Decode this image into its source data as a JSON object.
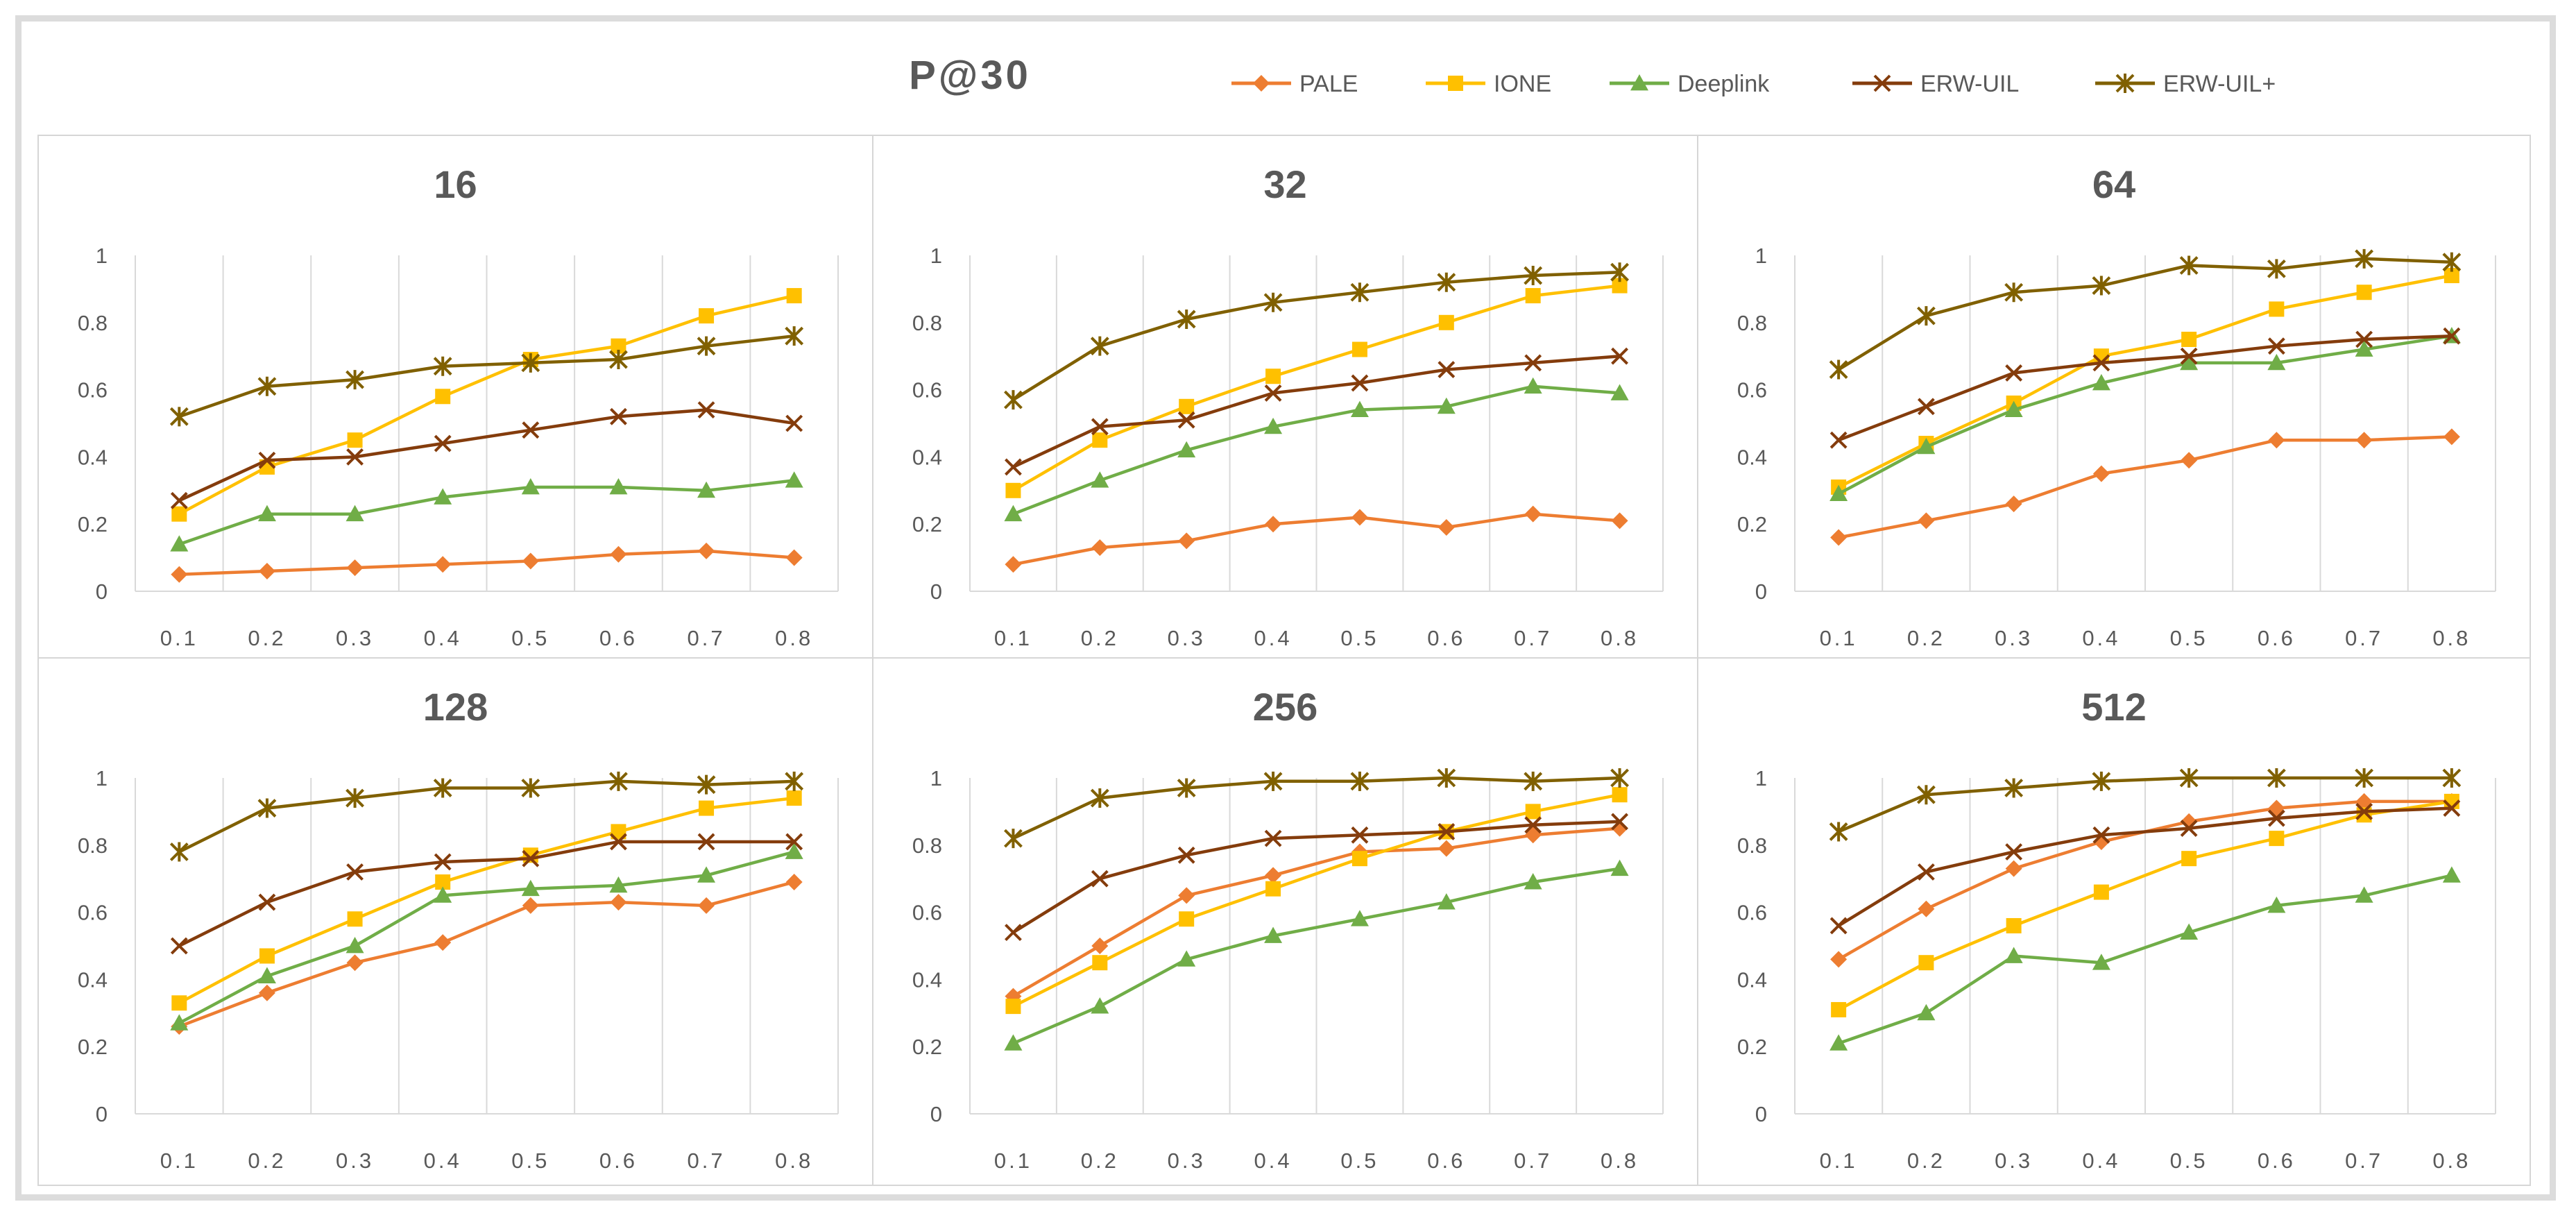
{
  "chart_data": {
    "type": "line",
    "title": "P@30",
    "x": [
      "0.1",
      "0.2",
      "0.3",
      "0.4",
      "0.5",
      "0.6",
      "0.7",
      "0.8"
    ],
    "y_ticks": [
      "0",
      "0.2",
      "0.4",
      "0.6",
      "0.8",
      "1"
    ],
    "ylim": [
      0,
      1
    ],
    "legend_position": "top-right",
    "legend": [
      {
        "name": "PALE",
        "color": "#ED7D31",
        "marker": "diamond"
      },
      {
        "name": "IONE",
        "color": "#FFC000",
        "marker": "square"
      },
      {
        "name": "Deeplink",
        "color": "#70AD47",
        "marker": "triangle"
      },
      {
        "name": "ERW-UIL",
        "color": "#843C0C",
        "marker": "x"
      },
      {
        "name": "ERW-UIL+",
        "color": "#806000",
        "marker": "star"
      }
    ],
    "panels": [
      {
        "title": "16",
        "series": [
          {
            "name": "PALE",
            "values": [
              0.05,
              0.06,
              0.07,
              0.08,
              0.09,
              0.11,
              0.12,
              0.1
            ]
          },
          {
            "name": "IONE",
            "values": [
              0.23,
              0.37,
              0.45,
              0.58,
              0.69,
              0.73,
              0.82,
              0.88
            ]
          },
          {
            "name": "Deeplink",
            "values": [
              0.14,
              0.23,
              0.23,
              0.28,
              0.31,
              0.31,
              0.3,
              0.33
            ]
          },
          {
            "name": "ERW-UIL",
            "values": [
              0.27,
              0.39,
              0.4,
              0.44,
              0.48,
              0.52,
              0.54,
              0.5
            ]
          },
          {
            "name": "ERW-UIL+",
            "values": [
              0.52,
              0.61,
              0.63,
              0.67,
              0.68,
              0.69,
              0.73,
              0.76
            ]
          }
        ]
      },
      {
        "title": "32",
        "series": [
          {
            "name": "PALE",
            "values": [
              0.08,
              0.13,
              0.15,
              0.2,
              0.22,
              0.19,
              0.23,
              0.21
            ]
          },
          {
            "name": "IONE",
            "values": [
              0.3,
              0.45,
              0.55,
              0.64,
              0.72,
              0.8,
              0.88,
              0.91
            ]
          },
          {
            "name": "Deeplink",
            "values": [
              0.23,
              0.33,
              0.42,
              0.49,
              0.54,
              0.55,
              0.61,
              0.59
            ]
          },
          {
            "name": "ERW-UIL",
            "values": [
              0.37,
              0.49,
              0.51,
              0.59,
              0.62,
              0.66,
              0.68,
              0.7
            ]
          },
          {
            "name": "ERW-UIL+",
            "values": [
              0.57,
              0.73,
              0.81,
              0.86,
              0.89,
              0.92,
              0.94,
              0.95
            ]
          }
        ]
      },
      {
        "title": "64",
        "series": [
          {
            "name": "PALE",
            "values": [
              0.16,
              0.21,
              0.26,
              0.35,
              0.39,
              0.45,
              0.45,
              0.46
            ]
          },
          {
            "name": "IONE",
            "values": [
              0.31,
              0.44,
              0.56,
              0.7,
              0.75,
              0.84,
              0.89,
              0.94
            ]
          },
          {
            "name": "Deeplink",
            "values": [
              0.29,
              0.43,
              0.54,
              0.62,
              0.68,
              0.68,
              0.72,
              0.76
            ]
          },
          {
            "name": "ERW-UIL",
            "values": [
              0.45,
              0.55,
              0.65,
              0.68,
              0.7,
              0.73,
              0.75,
              0.76
            ]
          },
          {
            "name": "ERW-UIL+",
            "values": [
              0.66,
              0.82,
              0.89,
              0.91,
              0.97,
              0.96,
              0.99,
              0.98
            ]
          }
        ]
      },
      {
        "title": "128",
        "series": [
          {
            "name": "PALE",
            "values": [
              0.26,
              0.36,
              0.45,
              0.51,
              0.62,
              0.63,
              0.62,
              0.69
            ]
          },
          {
            "name": "IONE",
            "values": [
              0.33,
              0.47,
              0.58,
              0.69,
              0.77,
              0.84,
              0.91,
              0.94
            ]
          },
          {
            "name": "Deeplink",
            "values": [
              0.27,
              0.41,
              0.5,
              0.65,
              0.67,
              0.68,
              0.71,
              0.78
            ]
          },
          {
            "name": "ERW-UIL",
            "values": [
              0.5,
              0.63,
              0.72,
              0.75,
              0.76,
              0.81,
              0.81,
              0.81
            ]
          },
          {
            "name": "ERW-UIL+",
            "values": [
              0.78,
              0.91,
              0.94,
              0.97,
              0.97,
              0.99,
              0.98,
              0.99
            ]
          }
        ]
      },
      {
        "title": "256",
        "series": [
          {
            "name": "PALE",
            "values": [
              0.35,
              0.5,
              0.65,
              0.71,
              0.78,
              0.79,
              0.83,
              0.85
            ]
          },
          {
            "name": "IONE",
            "values": [
              0.32,
              0.45,
              0.58,
              0.67,
              0.76,
              0.84,
              0.9,
              0.95
            ]
          },
          {
            "name": "Deeplink",
            "values": [
              0.21,
              0.32,
              0.46,
              0.53,
              0.58,
              0.63,
              0.69,
              0.73
            ]
          },
          {
            "name": "ERW-UIL",
            "values": [
              0.54,
              0.7,
              0.77,
              0.82,
              0.83,
              0.84,
              0.86,
              0.87
            ]
          },
          {
            "name": "ERW-UIL+",
            "values": [
              0.82,
              0.94,
              0.97,
              0.99,
              0.99,
              1.0,
              0.99,
              1.0
            ]
          }
        ]
      },
      {
        "title": "512",
        "series": [
          {
            "name": "PALE",
            "values": [
              0.46,
              0.61,
              0.73,
              0.81,
              0.87,
              0.91,
              0.93,
              0.93
            ]
          },
          {
            "name": "IONE",
            "values": [
              0.31,
              0.45,
              0.56,
              0.66,
              0.76,
              0.82,
              0.89,
              0.93
            ]
          },
          {
            "name": "Deeplink",
            "values": [
              0.21,
              0.3,
              0.47,
              0.45,
              0.54,
              0.62,
              0.65,
              0.71
            ]
          },
          {
            "name": "ERW-UIL",
            "values": [
              0.56,
              0.72,
              0.78,
              0.83,
              0.85,
              0.88,
              0.9,
              0.91
            ]
          },
          {
            "name": "ERW-UIL+",
            "values": [
              0.84,
              0.95,
              0.97,
              0.99,
              1.0,
              1.0,
              1.0,
              1.0
            ]
          }
        ]
      }
    ]
  }
}
